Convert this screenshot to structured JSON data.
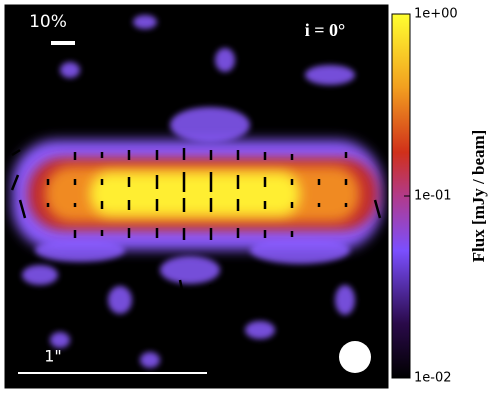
{
  "chart_data": {
    "type": "image",
    "annotations": {
      "vector_scale": "10%",
      "inclination": "i  =  0°",
      "angular_scale": "1\""
    },
    "colorbar": {
      "label": "Flux  [mJy / beam]",
      "log": true,
      "lim": [
        0.01,
        1
      ],
      "ticks": [
        {
          "value": 0.01,
          "label": "1e-02"
        },
        {
          "value": 0.1,
          "label": "1e-01"
        },
        {
          "value": 1,
          "label": "1e+00"
        }
      ]
    }
  }
}
